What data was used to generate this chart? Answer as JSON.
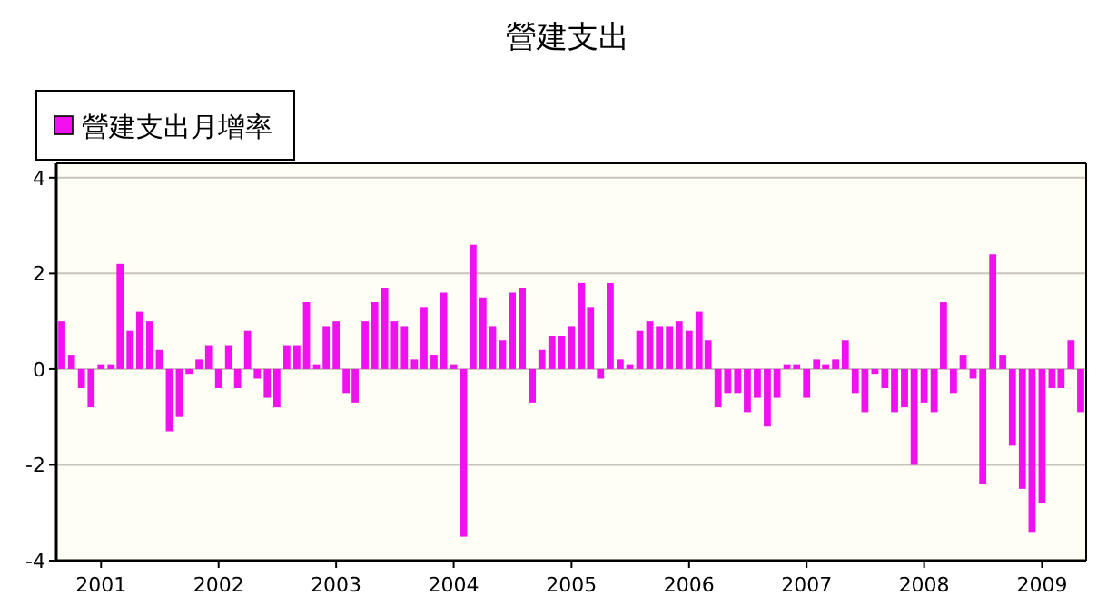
{
  "chart_data": {
    "type": "bar",
    "title": "營建支出",
    "legend": "top left",
    "grid": "y",
    "xlim": [
      "2000-08-15",
      "2009-05-18"
    ],
    "ylim": [
      -4,
      4.3
    ],
    "yticks": [
      -4,
      -2,
      0,
      2,
      4
    ],
    "xticks": [
      "2001",
      "2002",
      "2003",
      "2004",
      "2005",
      "2006",
      "2007",
      "2008",
      "2009"
    ],
    "x": [
      "2000-09",
      "2000-10",
      "2000-11",
      "2000-12",
      "2001-01",
      "2001-02",
      "2001-03",
      "2001-04",
      "2001-05",
      "2001-06",
      "2001-07",
      "2001-08",
      "2001-09",
      "2001-10",
      "2001-11",
      "2001-12",
      "2002-01",
      "2002-02",
      "2002-03",
      "2002-04",
      "2002-05",
      "2002-06",
      "2002-07",
      "2002-08",
      "2002-09",
      "2002-10",
      "2002-11",
      "2002-12",
      "2003-01",
      "2003-02",
      "2003-03",
      "2003-04",
      "2003-05",
      "2003-06",
      "2003-07",
      "2003-08",
      "2003-09",
      "2003-10",
      "2003-11",
      "2003-12",
      "2004-01",
      "2004-02",
      "2004-03",
      "2004-04",
      "2004-05",
      "2004-06",
      "2004-07",
      "2004-08",
      "2004-09",
      "2004-10",
      "2004-11",
      "2004-12",
      "2005-01",
      "2005-02",
      "2005-03",
      "2005-04",
      "2005-05",
      "2005-06",
      "2005-07",
      "2005-08",
      "2005-09",
      "2005-10",
      "2005-11",
      "2005-12",
      "2006-01",
      "2006-02",
      "2006-03",
      "2006-04",
      "2006-05",
      "2006-06",
      "2006-07",
      "2006-08",
      "2006-09",
      "2006-10",
      "2006-11",
      "2006-12",
      "2007-01",
      "2007-02",
      "2007-03",
      "2007-04",
      "2007-05",
      "2007-06",
      "2007-07",
      "2007-08",
      "2007-09",
      "2007-10",
      "2007-11",
      "2007-12",
      "2008-01",
      "2008-02",
      "2008-03",
      "2008-04",
      "2008-05",
      "2008-06",
      "2008-07",
      "2008-08",
      "2008-09",
      "2008-10",
      "2008-11",
      "2008-12",
      "2009-01",
      "2009-02",
      "2009-03",
      "2009-04",
      "2009-05"
    ],
    "series": [
      {
        "name": "營建支出月增率",
        "color": "#f010f0",
        "values": [
          1.0,
          0.3,
          -0.4,
          -0.8,
          0.1,
          0.1,
          2.2,
          0.8,
          1.2,
          1.0,
          0.4,
          -1.3,
          -1.0,
          -0.1,
          0.2,
          0.5,
          -0.4,
          0.5,
          -0.4,
          0.8,
          -0.2,
          -0.6,
          -0.8,
          0.5,
          0.5,
          1.4,
          0.1,
          0.9,
          1.0,
          -0.5,
          -0.7,
          1.0,
          1.4,
          1.7,
          1.0,
          0.9,
          0.2,
          1.3,
          0.3,
          1.6,
          0.1,
          -3.5,
          2.6,
          1.5,
          0.9,
          0.6,
          1.6,
          1.7,
          -0.7,
          0.4,
          0.7,
          0.7,
          0.9,
          1.8,
          1.3,
          -0.2,
          1.8,
          0.2,
          0.1,
          0.8,
          1.0,
          0.9,
          0.9,
          1.0,
          0.8,
          1.2,
          0.6,
          -0.8,
          -0.5,
          -0.5,
          -0.9,
          -0.6,
          -1.2,
          -0.6,
          0.1,
          0.1,
          -0.6,
          0.2,
          0.1,
          0.2,
          0.6,
          -0.5,
          -0.9,
          -0.1,
          -0.4,
          -0.9,
          -0.8,
          -2.0,
          -0.7,
          -0.9,
          1.4,
          -0.5,
          0.3,
          -0.2,
          -2.4,
          2.4,
          0.3,
          -1.6,
          -2.5,
          -3.4,
          -2.8,
          -0.4,
          -0.4,
          0.6,
          -0.9
        ]
      }
    ]
  }
}
